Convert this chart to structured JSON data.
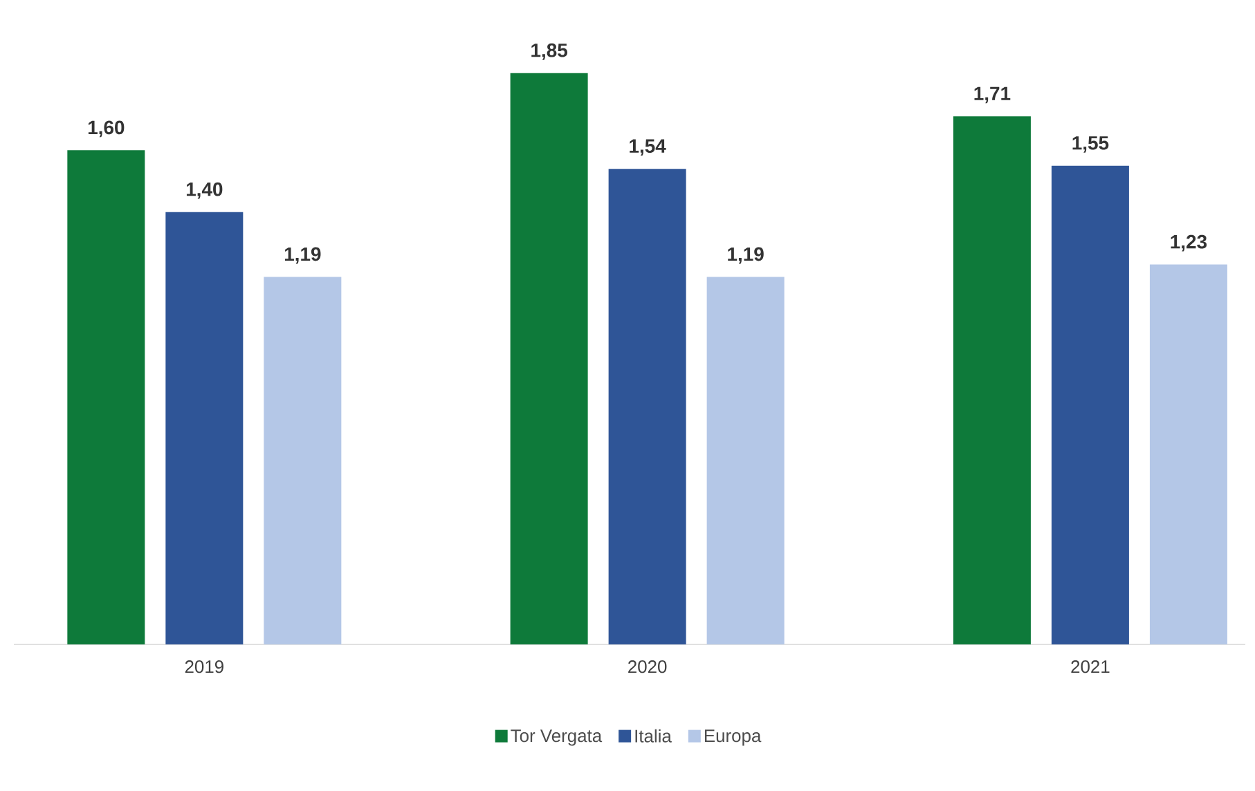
{
  "chart_data": {
    "type": "bar",
    "categories": [
      "2019",
      "2020",
      "2021"
    ],
    "series": [
      {
        "name": "Tor Vergata",
        "color": "#0e7a3a",
        "values": [
          1.6,
          1.85,
          1.71
        ],
        "value_labels": [
          "1,60",
          "1,85",
          "1,71"
        ]
      },
      {
        "name": "Italia",
        "color": "#2f5597",
        "values": [
          1.4,
          1.54,
          1.55
        ],
        "value_labels": [
          "1,40",
          "1,54",
          "1,55"
        ]
      },
      {
        "name": "Europa",
        "color": "#b4c7e7",
        "values": [
          1.19,
          1.19,
          1.23
        ],
        "value_labels": [
          "1,19",
          "1,19",
          "1,23"
        ]
      }
    ],
    "legend": "bottom"
  }
}
